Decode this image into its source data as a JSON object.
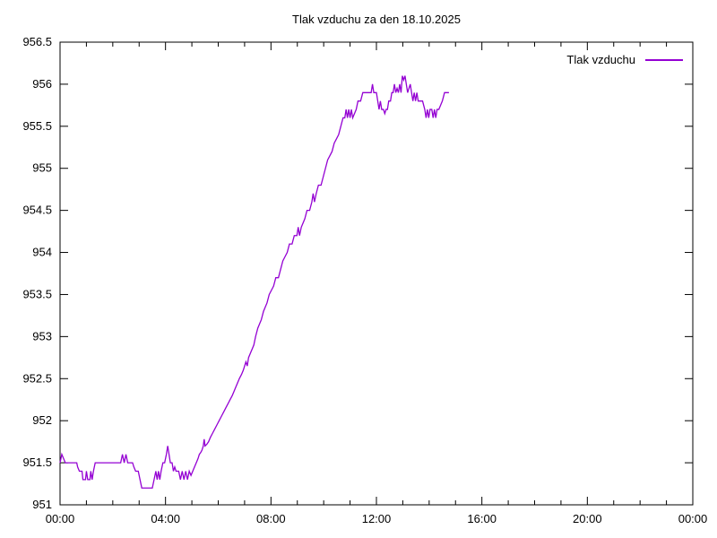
{
  "title": "Tlak vzduchu za den 18.10.2025",
  "legend": {
    "label": "Tlak vzduchu"
  },
  "colors": {
    "line": "#9400d3",
    "axis": "#000000",
    "background": "#ffffff",
    "text": "#000000"
  },
  "chart_data": {
    "type": "line",
    "title": "Tlak vzduchu za den 18.10.2025",
    "xlabel": "",
    "ylabel": "",
    "y_unit": "hPa",
    "x_unit": "minutes_since_midnight",
    "xlim_minutes": [
      0,
      1440
    ],
    "ylim": [
      951,
      956.5
    ],
    "grid": false,
    "legend_position": "top-right",
    "legend_entries": [
      "Tlak vzduchu"
    ],
    "x_major_tick_hours": [
      0,
      4,
      8,
      12,
      16,
      20,
      24
    ],
    "x_tick_labels": [
      "00:00",
      "04:00",
      "08:00",
      "12:00",
      "16:00",
      "20:00",
      "00:00"
    ],
    "x_minor_tick_every_hours": 1,
    "y_ticks": [
      951,
      951.5,
      952,
      952.5,
      953,
      953.5,
      954,
      954.5,
      955,
      955.5,
      956,
      956.5
    ],
    "y_tick_labels": [
      "951",
      "951.5",
      "952",
      "952.5",
      "953",
      "953.5",
      "954",
      "954.5",
      "955",
      "955.5",
      "956",
      "956.5"
    ],
    "series": [
      {
        "name": "Tlak vzduchu",
        "color": "#9400d3",
        "points": [
          [
            0,
            951.5
          ],
          [
            4,
            951.6
          ],
          [
            8,
            951.55
          ],
          [
            12,
            951.5
          ],
          [
            20,
            951.5
          ],
          [
            30,
            951.5
          ],
          [
            38,
            951.5
          ],
          [
            40,
            951.45
          ],
          [
            44,
            951.4
          ],
          [
            50,
            951.4
          ],
          [
            52,
            951.3
          ],
          [
            58,
            951.3
          ],
          [
            60,
            951.4
          ],
          [
            63,
            951.3
          ],
          [
            68,
            951.3
          ],
          [
            70,
            951.4
          ],
          [
            73,
            951.3
          ],
          [
            76,
            951.4
          ],
          [
            80,
            951.5
          ],
          [
            90,
            951.5
          ],
          [
            100,
            951.5
          ],
          [
            110,
            951.5
          ],
          [
            120,
            951.5
          ],
          [
            130,
            951.5
          ],
          [
            138,
            951.5
          ],
          [
            142,
            951.6
          ],
          [
            146,
            951.5
          ],
          [
            150,
            951.6
          ],
          [
            154,
            951.5
          ],
          [
            160,
            951.5
          ],
          [
            165,
            951.5
          ],
          [
            168,
            951.45
          ],
          [
            172,
            951.4
          ],
          [
            178,
            951.4
          ],
          [
            182,
            951.3
          ],
          [
            186,
            951.2
          ],
          [
            195,
            951.2
          ],
          [
            205,
            951.2
          ],
          [
            210,
            951.2
          ],
          [
            214,
            951.3
          ],
          [
            218,
            951.4
          ],
          [
            221,
            951.3
          ],
          [
            224,
            951.4
          ],
          [
            227,
            951.3
          ],
          [
            230,
            951.4
          ],
          [
            234,
            951.5
          ],
          [
            238,
            951.5
          ],
          [
            242,
            951.6
          ],
          [
            245,
            951.7
          ],
          [
            248,
            951.6
          ],
          [
            251,
            951.5
          ],
          [
            255,
            951.5
          ],
          [
            258,
            951.4
          ],
          [
            261,
            951.45
          ],
          [
            264,
            951.4
          ],
          [
            270,
            951.4
          ],
          [
            274,
            951.3
          ],
          [
            278,
            951.4
          ],
          [
            282,
            951.3
          ],
          [
            286,
            951.4
          ],
          [
            290,
            951.3
          ],
          [
            294,
            951.4
          ],
          [
            298,
            951.35
          ],
          [
            302,
            951.4
          ],
          [
            306,
            951.45
          ],
          [
            310,
            951.5
          ],
          [
            314,
            951.55
          ],
          [
            317,
            951.6
          ],
          [
            320,
            951.62
          ],
          [
            323,
            951.65
          ],
          [
            326,
            951.7
          ],
          [
            328,
            951.78
          ],
          [
            330,
            951.7
          ],
          [
            334,
            951.72
          ],
          [
            338,
            951.75
          ],
          [
            342,
            951.8
          ],
          [
            347,
            951.85
          ],
          [
            352,
            951.9
          ],
          [
            357,
            951.95
          ],
          [
            362,
            952.0
          ],
          [
            367,
            952.05
          ],
          [
            372,
            952.1
          ],
          [
            377,
            952.15
          ],
          [
            382,
            952.2
          ],
          [
            387,
            952.25
          ],
          [
            392,
            952.3
          ],
          [
            396,
            952.35
          ],
          [
            400,
            952.4
          ],
          [
            404,
            952.45
          ],
          [
            408,
            952.5
          ],
          [
            413,
            952.55
          ],
          [
            417,
            952.6
          ],
          [
            420,
            952.65
          ],
          [
            423,
            952.7
          ],
          [
            426,
            952.65
          ],
          [
            429,
            952.75
          ],
          [
            433,
            952.8
          ],
          [
            437,
            952.85
          ],
          [
            441,
            952.9
          ],
          [
            445,
            953.0
          ],
          [
            450,
            953.1
          ],
          [
            454,
            953.15
          ],
          [
            458,
            953.2
          ],
          [
            463,
            953.3
          ],
          [
            467,
            953.35
          ],
          [
            471,
            953.4
          ],
          [
            476,
            953.5
          ],
          [
            481,
            953.55
          ],
          [
            486,
            953.6
          ],
          [
            491,
            953.7
          ],
          [
            497,
            953.7
          ],
          [
            502,
            953.8
          ],
          [
            507,
            953.9
          ],
          [
            512,
            953.95
          ],
          [
            517,
            954.0
          ],
          [
            522,
            954.1
          ],
          [
            528,
            954.1
          ],
          [
            533,
            954.2
          ],
          [
            539,
            954.2
          ],
          [
            542,
            954.3
          ],
          [
            545,
            954.2
          ],
          [
            549,
            954.3
          ],
          [
            553,
            954.35
          ],
          [
            557,
            954.4
          ],
          [
            562,
            954.5
          ],
          [
            568,
            954.5
          ],
          [
            573,
            954.6
          ],
          [
            576,
            954.7
          ],
          [
            579,
            954.6
          ],
          [
            583,
            954.7
          ],
          [
            588,
            954.8
          ],
          [
            594,
            954.8
          ],
          [
            599,
            954.9
          ],
          [
            604,
            955.0
          ],
          [
            609,
            955.1
          ],
          [
            614,
            955.15
          ],
          [
            619,
            955.2
          ],
          [
            624,
            955.3
          ],
          [
            629,
            955.35
          ],
          [
            634,
            955.4
          ],
          [
            639,
            955.5
          ],
          [
            644,
            955.6
          ],
          [
            648,
            955.6
          ],
          [
            651,
            955.7
          ],
          [
            654,
            955.6
          ],
          [
            657,
            955.7
          ],
          [
            660,
            955.6
          ],
          [
            663,
            955.7
          ],
          [
            666,
            955.6
          ],
          [
            670,
            955.65
          ],
          [
            674,
            955.7
          ],
          [
            678,
            955.8
          ],
          [
            684,
            955.8
          ],
          [
            689,
            955.9
          ],
          [
            696,
            955.9
          ],
          [
            703,
            955.9
          ],
          [
            708,
            955.9
          ],
          [
            711,
            956.0
          ],
          [
            714,
            955.9
          ],
          [
            720,
            955.9
          ],
          [
            723,
            955.8
          ],
          [
            726,
            955.7
          ],
          [
            729,
            955.8
          ],
          [
            732,
            955.7
          ],
          [
            736,
            955.7
          ],
          [
            739,
            955.65
          ],
          [
            742,
            955.7
          ],
          [
            745,
            955.7
          ],
          [
            748,
            955.8
          ],
          [
            752,
            955.8
          ],
          [
            755,
            955.9
          ],
          [
            758,
            955.9
          ],
          [
            761,
            956.0
          ],
          [
            764,
            955.9
          ],
          [
            767,
            955.95
          ],
          [
            770,
            955.9
          ],
          [
            773,
            956.0
          ],
          [
            776,
            955.9
          ],
          [
            779,
            956.1
          ],
          [
            782,
            956.05
          ],
          [
            785,
            956.1
          ],
          [
            788,
            956.0
          ],
          [
            791,
            955.9
          ],
          [
            794,
            955.95
          ],
          [
            797,
            956.0
          ],
          [
            800,
            955.9
          ],
          [
            803,
            955.8
          ],
          [
            806,
            955.9
          ],
          [
            809,
            955.8
          ],
          [
            812,
            955.9
          ],
          [
            815,
            955.8
          ],
          [
            820,
            955.8
          ],
          [
            825,
            955.8
          ],
          [
            830,
            955.7
          ],
          [
            833,
            955.6
          ],
          [
            836,
            955.7
          ],
          [
            839,
            955.6
          ],
          [
            842,
            955.7
          ],
          [
            846,
            955.7
          ],
          [
            849,
            955.6
          ],
          [
            852,
            955.7
          ],
          [
            855,
            955.6
          ],
          [
            858,
            955.7
          ],
          [
            862,
            955.7
          ],
          [
            866,
            955.75
          ],
          [
            870,
            955.8
          ],
          [
            875,
            955.9
          ],
          [
            880,
            955.9
          ],
          [
            885,
            955.9
          ]
        ]
      }
    ]
  }
}
